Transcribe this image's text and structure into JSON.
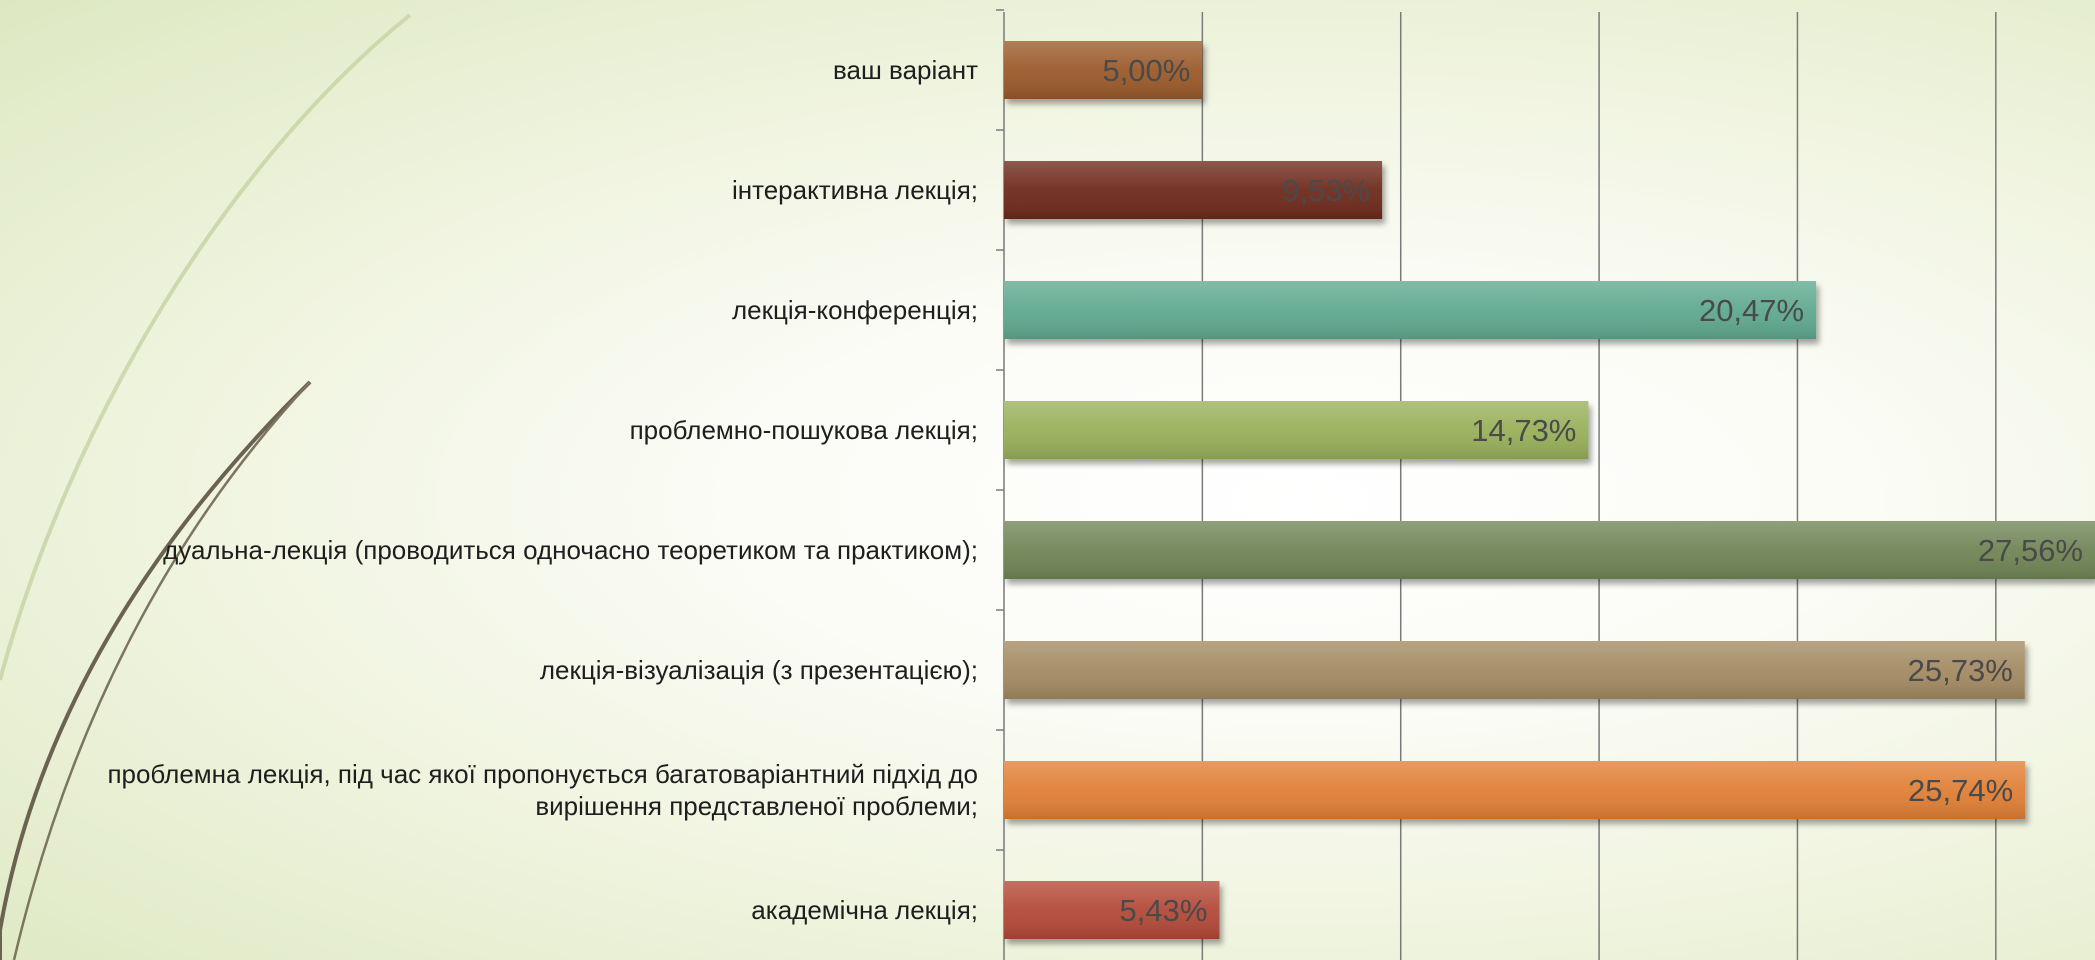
{
  "chart_data": {
    "type": "bar",
    "orientation": "horizontal",
    "categories": [
      "ваш варіант",
      "інтерактивна лекція;",
      "лекція-конференція;",
      "проблемно-пошукова лекція;",
      "дуальна-лекція (проводиться одночасно теоретиком та практиком);",
      "лекція-візуалізація (з презентацією);",
      "проблемна лекція, під час якої пропонується багатоваріантний підхід до вирішення представленої проблеми;",
      "академічна лекція;"
    ],
    "category_lines": [
      [
        "ваш варіант"
      ],
      [
        "інтерактивна лекція;"
      ],
      [
        "лекція-конференція;"
      ],
      [
        "проблемно-пошукова лекція;"
      ],
      [
        "дуальна-лекція (проводиться одночасно теоретиком та практиком);"
      ],
      [
        "лекція-візуалізація (з презентацією);"
      ],
      [
        "проблемна лекція, під час якої пропонується багатоваріантний підхід до",
        "вирішення представленої проблеми;"
      ],
      [
        "академічна лекція;"
      ]
    ],
    "values": [
      5.0,
      9.53,
      20.47,
      14.73,
      27.56,
      25.73,
      25.74,
      5.43
    ],
    "value_labels": [
      "5,00%",
      "9,53%",
      "20,47%",
      "14,73%",
      "27,56%",
      "25,73%",
      "25,74%",
      "5,43%"
    ],
    "colors": [
      "#9b5a2a",
      "#6e2a1e",
      "#5ea98f",
      "#98b05a",
      "#6f8556",
      "#a38a62",
      "#e07f34",
      "#b34a38"
    ],
    "xlim": [
      0,
      27.5
    ],
    "grid_interval": 5,
    "grid": true,
    "legend": "none",
    "title": "",
    "xlabel": "",
    "ylabel": ""
  }
}
